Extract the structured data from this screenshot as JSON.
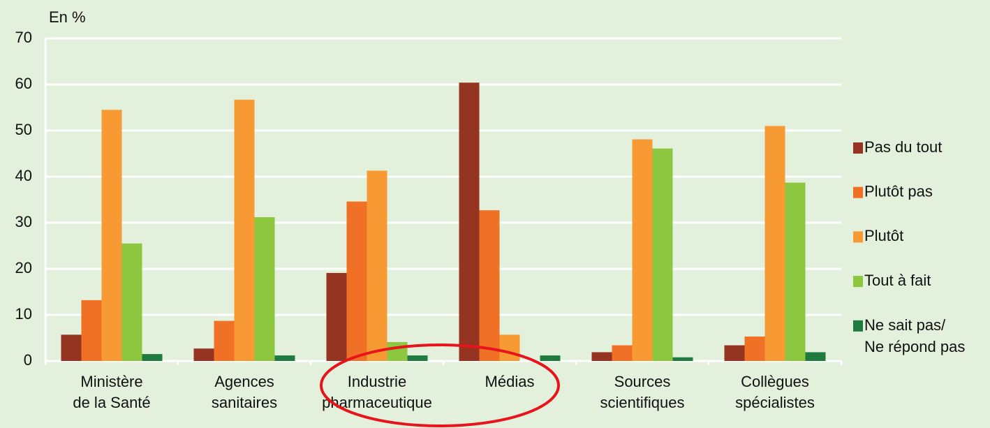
{
  "chart_data": {
    "type": "bar",
    "y_label": "En %",
    "categories": [
      "Ministère\nde la Santé",
      "Agences\nsanitaires",
      "Industrie\npharmaceutique",
      "Médias",
      "Sources\nscientifiques",
      "Collègues\nspécialistes"
    ],
    "series": [
      {
        "name": "Pas du tout",
        "color": "#943421",
        "values": [
          5.7,
          2.7,
          19.1,
          60.4,
          1.9,
          3.4
        ]
      },
      {
        "name": "Plutôt pas",
        "color": "#f07025",
        "values": [
          13.2,
          8.7,
          34.6,
          32.7,
          3.4,
          5.3
        ]
      },
      {
        "name": "Plutôt",
        "color": "#f79a33",
        "values": [
          54.5,
          56.7,
          41.3,
          5.7,
          48.1,
          51.0
        ]
      },
      {
        "name": "Tout à fait",
        "color": "#8dc63f",
        "values": [
          25.5,
          31.2,
          4.1,
          0,
          46.1,
          38.7
        ]
      },
      {
        "name": "Ne sait pas/\nNe répond pas",
        "color": "#1e7b3d",
        "values": [
          1.5,
          1.2,
          1.2,
          1.2,
          0.8,
          1.9
        ]
      }
    ],
    "ylim": [
      0,
      70
    ],
    "yticks": [
      0,
      10,
      20,
      30,
      40,
      50,
      60,
      70
    ],
    "grid": true,
    "legend": "right"
  }
}
